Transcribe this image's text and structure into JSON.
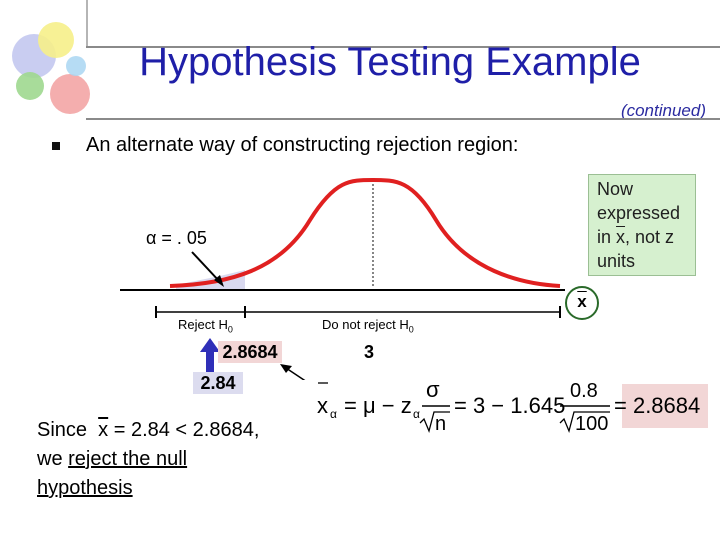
{
  "slide": {
    "title": "Hypothesis Testing Example",
    "continued": "(continued)",
    "bullet": "An alternate way of constructing rejection region:"
  },
  "callout": {
    "line1": "Now",
    "line2": "expressed",
    "line3_a": "in",
    "line3_b": "x",
    "line3_c": ", not z",
    "line4": "units"
  },
  "chart_data": {
    "type": "normal-curve",
    "mean": 3,
    "critical_value": 2.8684,
    "observed_xbar": 2.84,
    "alpha": "α = . 05",
    "x_axis_label": "x",
    "regions": [
      "Reject H0",
      "Do not reject H0"
    ],
    "critical_label": "2.8684",
    "mean_label": "3",
    "xbar_label": "2.84"
  },
  "labels": {
    "alpha": "α = . 05",
    "reject": "Reject H",
    "reject_sub": "0",
    "noreject": "Do not reject H",
    "noreject_sub": "0",
    "critical": "2.8684",
    "mean": "3",
    "xbar": "2.84",
    "x_axis": "x"
  },
  "formula": {
    "lhs_x": "x",
    "lhs_sub": "α",
    "eq1": "= μ − z",
    "z_sub": "α",
    "sigma": "σ",
    "sqrt_n": "n",
    "eq2": "= 3 − 1.645",
    "num": "0.8",
    "den": "100",
    "result": "= 2.8684"
  },
  "conclusion": {
    "since": "Since",
    "xbar": "x",
    "rest": " = 2.84 < 2.8684,",
    "line2_a": "we ",
    "line2_b": "reject the null",
    "line3": "hypothesis"
  },
  "colors": {
    "title": "#1f1fa8",
    "curve": "#e02020",
    "reject_fill": "#c9c9e8",
    "callout_bg": "#d6f0cf",
    "highlight": "#f2d6d6"
  }
}
